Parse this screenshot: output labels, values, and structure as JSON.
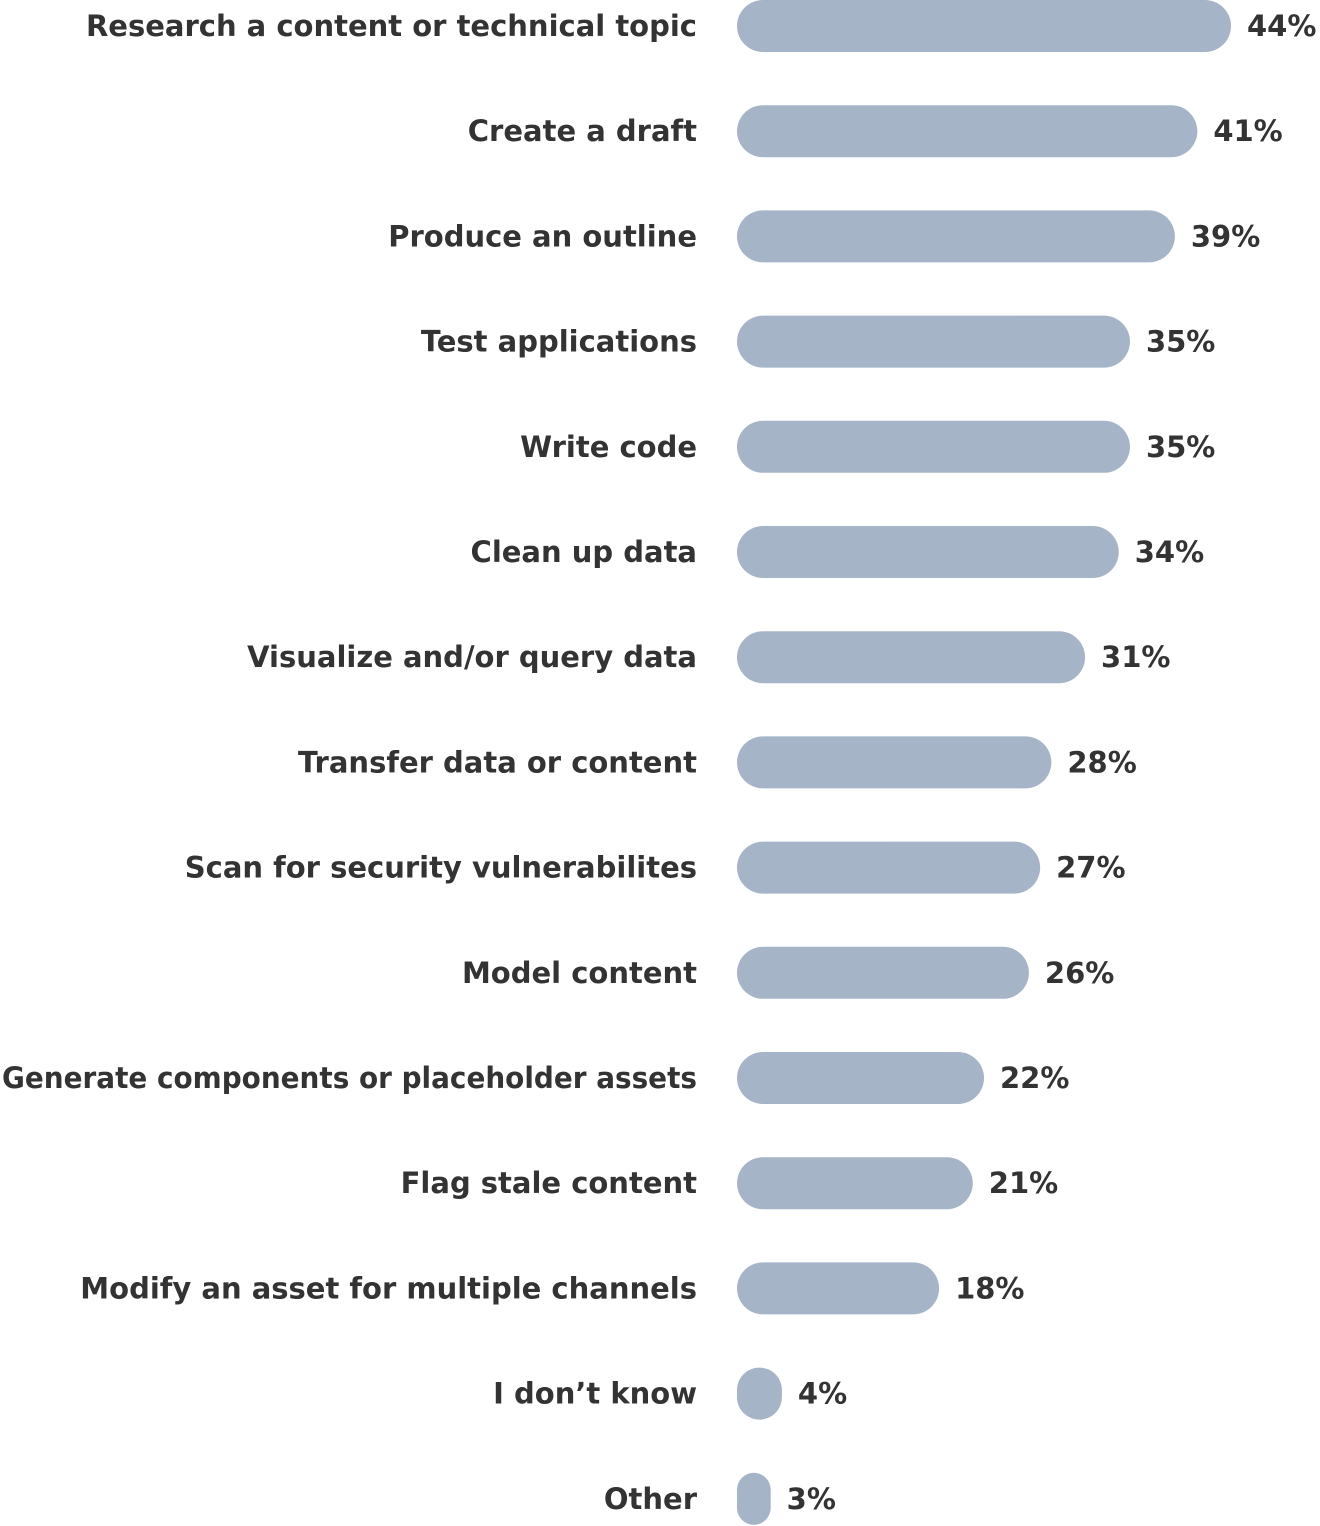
{
  "chart_data": {
    "type": "bar",
    "orientation": "horizontal",
    "categories": [
      "Research a content or technical topic",
      "Create a draft",
      "Produce an outline",
      "Test applications",
      "Write code",
      "Clean up data",
      "Visualize and/or query data",
      "Transfer data or content",
      "Scan for security vulnerabilites",
      "Model content",
      "Generate components or placeholder assets",
      "Flag stale content",
      "Modify an asset for multiple channels",
      "I don’t know",
      "Other"
    ],
    "values": [
      44,
      41,
      39,
      35,
      35,
      34,
      31,
      28,
      27,
      26,
      22,
      21,
      18,
      4,
      3
    ],
    "value_labels": [
      "44%",
      "41%",
      "39%",
      "35%",
      "35%",
      "34%",
      "31%",
      "28%",
      "27%",
      "26%",
      "22%",
      "21%",
      "18%",
      "4%",
      "3%"
    ],
    "unit": "%",
    "xlim": [
      0,
      44
    ],
    "grid": false,
    "legend": "none",
    "bar_color": "#a5b4c7",
    "text_color": "#333333"
  }
}
